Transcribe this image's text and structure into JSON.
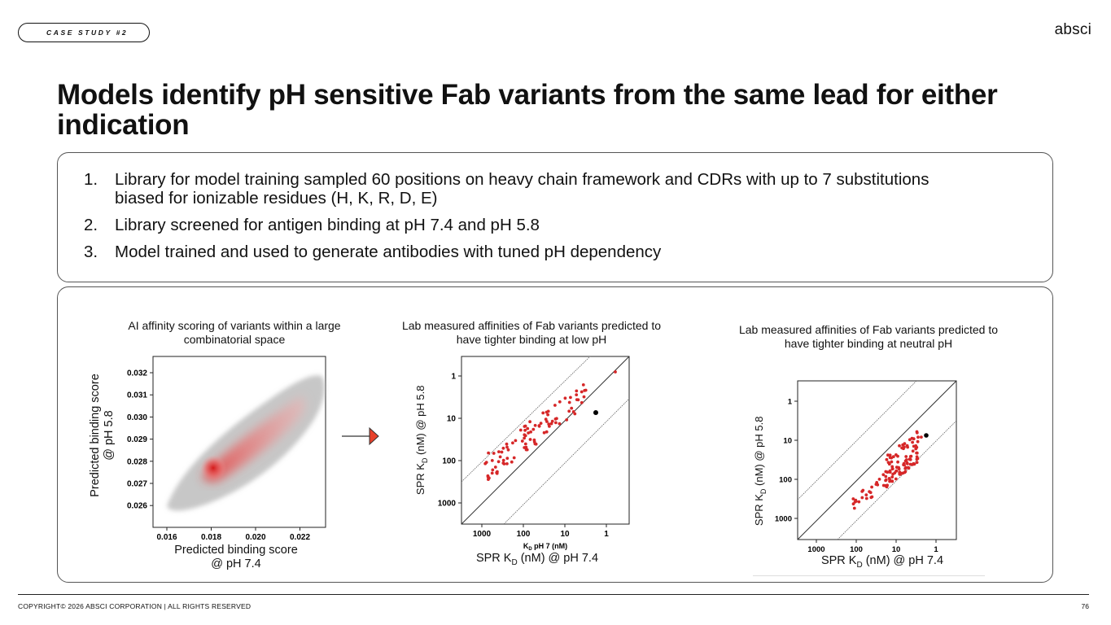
{
  "header": {
    "pill_label": "CASE STUDY #2",
    "logo_text": "absci"
  },
  "title": "Models identify pH sensitive Fab variants from the same lead for either indication",
  "points": [
    {
      "num": "1.",
      "text": "Library for model training sampled 60 positions on heavy chain framework and CDRs with up to 7 substitutions biased for ionizable residues (H, K, R, D, E)"
    },
    {
      "num": "2.",
      "text": "Library screened for antigen binding at pH 7.4 and pH 5.8"
    },
    {
      "num": "3.",
      "text": "Model trained and used to generate antibodies with tuned pH dependency"
    }
  ],
  "panel1": {
    "caption": "AI affinity scoring of variants within a large combinatorial space",
    "ylabel_line1": "Predicted binding score",
    "ylabel_line2": "@ pH 5.8",
    "xlabel_line1": "Predicted binding score",
    "xlabel_line2": "@ pH 7.4",
    "yticks": [
      "0.032",
      "0.031",
      "0.030",
      "0.029",
      "0.028",
      "0.027",
      "0.026"
    ],
    "xticks": [
      "0.016",
      "0.018",
      "0.020",
      "0.022"
    ]
  },
  "panel2": {
    "caption": "Lab measured affinities of Fab variants predicted to have tighter binding at low pH",
    "ylabel": "SPR K",
    "ylabel_sub": "D",
    "ylabel_rest": " (nM) @ pH 5.8",
    "xlabel": "SPR K",
    "xlabel_sub": "D",
    "xlabel_rest": " (nM) @ pH 7.4",
    "inner_xlabel": "K",
    "inner_xlabel_sub": "D",
    "inner_xlabel_rest": " pH 7 (nM)",
    "yticks": [
      "1",
      "10",
      "100",
      "1000"
    ],
    "xticks": [
      "1000",
      "100",
      "10",
      "1"
    ]
  },
  "panel3": {
    "caption": "Lab measured affinities of Fab variants predicted to have tighter binding at neutral pH",
    "ylabel": "SPR K",
    "ylabel_sub": "D",
    "ylabel_rest": " (nM) @ pH 5.8",
    "xlabel": "SPR K",
    "xlabel_sub": "D",
    "xlabel_rest": " (nM) @ pH 7.4",
    "yticks": [
      "1",
      "10",
      "100",
      "1000"
    ],
    "xticks": [
      "1000",
      "100",
      "10",
      "1"
    ]
  },
  "colors": {
    "accent_red": "#d62728",
    "arrow_red": "#e8402a"
  },
  "footer": {
    "copyright": "COPYRIGHT© 2026 ABSCI CORPORATION | ALL RIGHTS RESERVED",
    "page_number": "76"
  }
}
